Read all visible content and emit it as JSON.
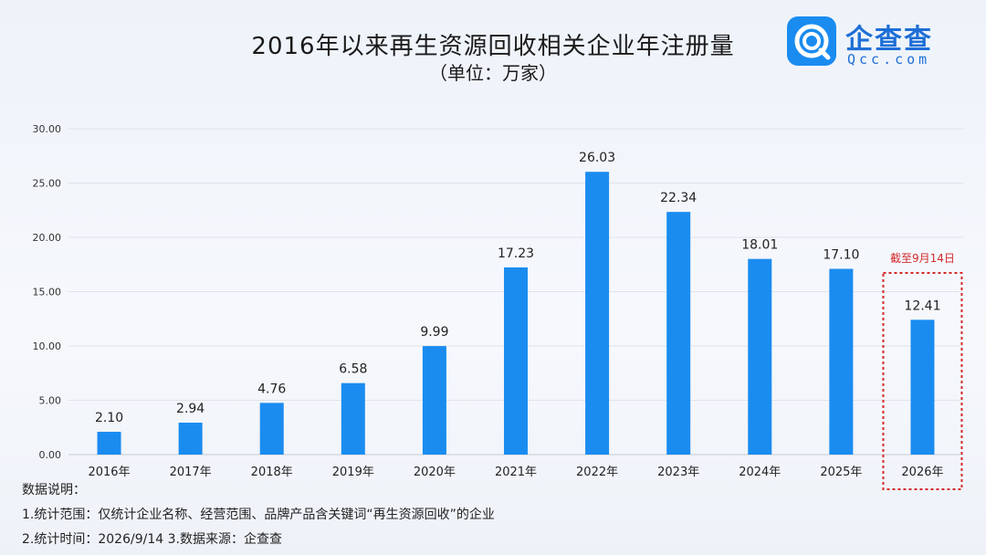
{
  "header": {
    "title": "2016年以来再生资源回收相关企业年注册量",
    "subtitle": "（单位：万家）"
  },
  "logo": {
    "name": "企查查",
    "domain": "Qcc.com"
  },
  "chart_data": {
    "type": "bar",
    "categories": [
      "2016年",
      "2017年",
      "2018年",
      "2019年",
      "2020年",
      "2021年",
      "2022年",
      "2023年",
      "2024年",
      "2025年",
      "2026年"
    ],
    "values": [
      2.1,
      2.94,
      4.76,
      6.58,
      9.99,
      17.23,
      26.03,
      22.34,
      18.01,
      17.1,
      12.41
    ],
    "value_labels": [
      "2.10",
      "2.94",
      "4.76",
      "6.58",
      "9.99",
      "17.23",
      "26.03",
      "22.34",
      "18.01",
      "17.10",
      "12.41"
    ],
    "y_ticks": [
      "0.00",
      "5.00",
      "10.00",
      "15.00",
      "20.00",
      "25.00",
      "30.00"
    ],
    "ylim": [
      0,
      30
    ],
    "grid": true,
    "bar_color": "#1a8cf0",
    "annotation": {
      "text": "截至9月14日",
      "target_category": "2026年",
      "color": "#d42a2a"
    }
  },
  "notes": {
    "heading": "数据说明：",
    "line1": "1.统计范围：仅统计企业名称、经营范围、品牌产品含关键词“再生资源回收”的企业",
    "line2": "2.统计时间：2026/9/14  3.数据来源：企查查"
  }
}
